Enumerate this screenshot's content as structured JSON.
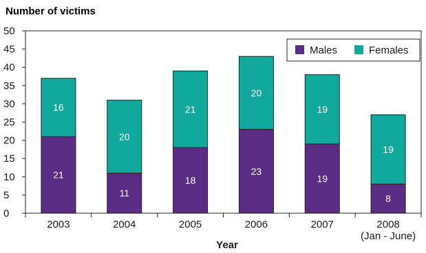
{
  "chart_data": {
    "type": "bar",
    "stacked": true,
    "title": "Number of victims",
    "xlabel": "Year",
    "ylabel": "",
    "ylim": [
      0,
      50
    ],
    "yticks": [
      0,
      5,
      10,
      15,
      20,
      25,
      30,
      35,
      40,
      45,
      50
    ],
    "categories": [
      [
        "2003"
      ],
      [
        "2004"
      ],
      [
        "2005"
      ],
      [
        "2006"
      ],
      [
        "2007"
      ],
      [
        "2008",
        "(Jan - June)"
      ]
    ],
    "series": [
      {
        "name": "Males",
        "color": "#5b2c83",
        "values": [
          21,
          11,
          18,
          23,
          19,
          8
        ]
      },
      {
        "name": "Females",
        "color": "#11a99c",
        "values": [
          16,
          20,
          21,
          20,
          19,
          19
        ]
      }
    ],
    "legend": {
      "position": "top-right"
    },
    "grid": false
  }
}
